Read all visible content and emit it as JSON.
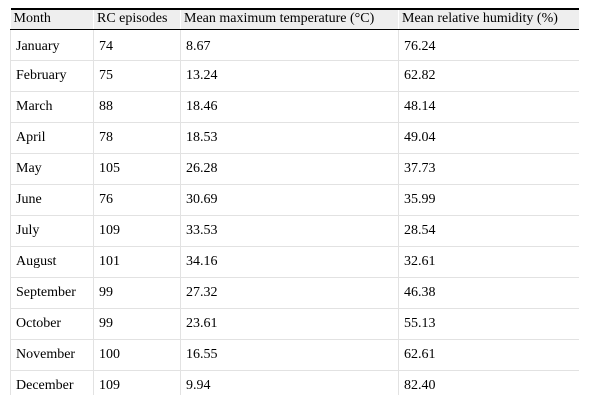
{
  "table": {
    "headers": {
      "month": "Month",
      "rc_episodes": "RC episodes",
      "mean_max_temp": "Mean maximum temperature (°C)",
      "mean_rel_humidity": "Mean relative humidity (%)"
    },
    "rows": [
      {
        "month": "January",
        "rc": "74",
        "temp": "8.67",
        "humidity": "76.24"
      },
      {
        "month": "February",
        "rc": "75",
        "temp": "13.24",
        "humidity": "62.82"
      },
      {
        "month": "March",
        "rc": "88",
        "temp": "18.46",
        "humidity": "48.14"
      },
      {
        "month": "April",
        "rc": "78",
        "temp": "18.53",
        "humidity": "49.04"
      },
      {
        "month": "May",
        "rc": "105",
        "temp": "26.28",
        "humidity": "37.73"
      },
      {
        "month": "June",
        "rc": "76",
        "temp": "30.69",
        "humidity": "35.99"
      },
      {
        "month": "July",
        "rc": "109",
        "temp": "33.53",
        "humidity": "28.54"
      },
      {
        "month": "August",
        "rc": "101",
        "temp": "34.16",
        "humidity": "32.61"
      },
      {
        "month": "September",
        "rc": "99",
        "temp": "27.32",
        "humidity": "46.38"
      },
      {
        "month": "October",
        "rc": "99",
        "temp": "23.61",
        "humidity": "55.13"
      },
      {
        "month": "November",
        "rc": "100",
        "temp": "16.55",
        "humidity": "62.61"
      },
      {
        "month": "December",
        "rc": "109",
        "temp": "9.94",
        "humidity": "82.40"
      }
    ]
  }
}
